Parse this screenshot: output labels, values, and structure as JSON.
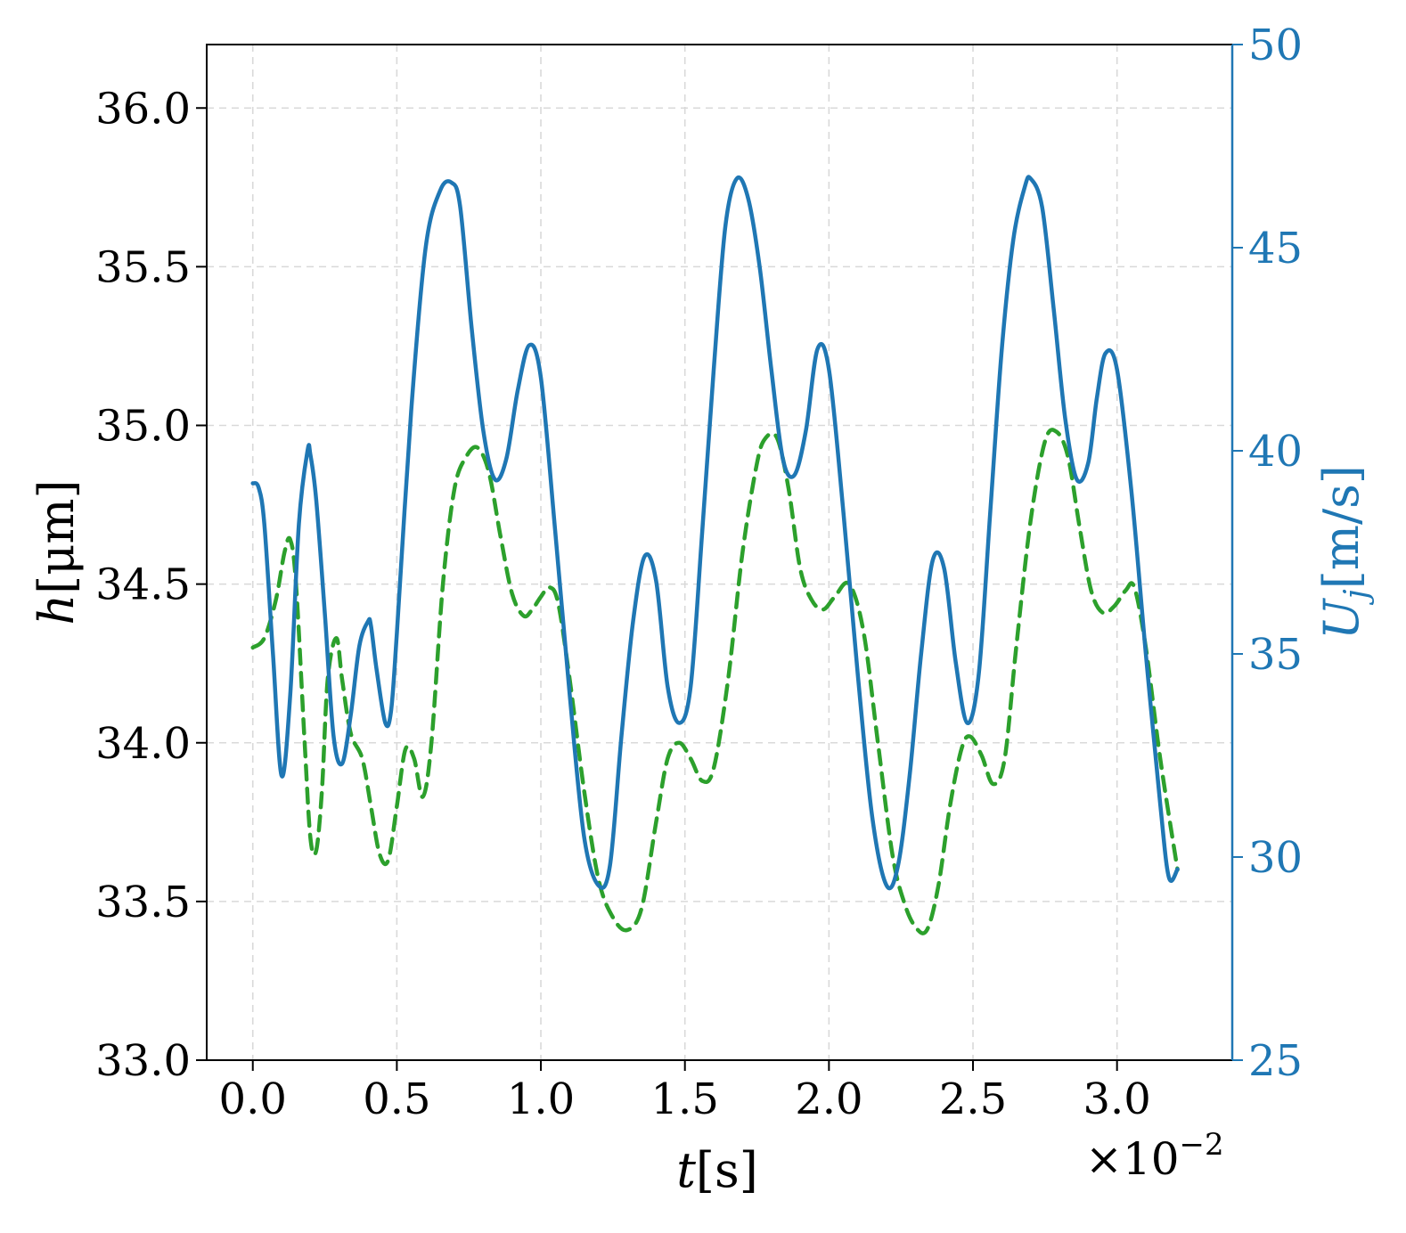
{
  "chart_data": {
    "type": "line",
    "grid": true,
    "x_axis": {
      "label_var": "t",
      "label_unit": "[s]",
      "range": [
        -0.0016,
        0.034
      ],
      "ticks": [
        0.0,
        0.005,
        0.01,
        0.015,
        0.02,
        0.025,
        0.03
      ],
      "tick_labels": [
        "0.0",
        "0.5",
        "1.0",
        "1.5",
        "2.0",
        "2.5",
        "3.0"
      ],
      "multiplier_base": "×10",
      "multiplier_exp": "−2"
    },
    "y_left": {
      "label_var": "h",
      "label_unit": "[μm]",
      "range": [
        33.0,
        36.2
      ],
      "ticks": [
        33.0,
        33.5,
        34.0,
        34.5,
        35.0,
        35.5,
        36.0
      ],
      "tick_labels": [
        "33.0",
        "33.5",
        "34.0",
        "34.5",
        "35.0",
        "35.5",
        "36.0"
      ]
    },
    "y_right": {
      "label_var": "U",
      "label_sub": "j",
      "label_unit": "[m/s]",
      "range": [
        25,
        50
      ],
      "ticks": [
        25,
        30,
        35,
        40,
        45,
        50
      ],
      "tick_labels": [
        "25",
        "30",
        "35",
        "40",
        "45",
        "50"
      ],
      "color": "#1f77b4"
    },
    "series": [
      {
        "axis": "right",
        "color": "#1f77b4",
        "style": "solid",
        "x": [
          0.0,
          0.0002,
          0.0004,
          0.0007,
          0.001,
          0.0013,
          0.0016,
          0.0019,
          0.002,
          0.0022,
          0.0025,
          0.0028,
          0.0031,
          0.0034,
          0.0037,
          0.004,
          0.0041,
          0.0043,
          0.0046,
          0.0048,
          0.005,
          0.0055,
          0.006,
          0.0065,
          0.0069,
          0.0072,
          0.0076,
          0.008,
          0.0084,
          0.0088,
          0.0092,
          0.0096,
          0.01,
          0.0105,
          0.011,
          0.0115,
          0.012,
          0.0124,
          0.0128,
          0.0132,
          0.0136,
          0.014,
          0.0144,
          0.0148,
          0.0152,
          0.0156,
          0.016,
          0.0164,
          0.0168,
          0.0172,
          0.0176,
          0.018,
          0.0184,
          0.0188,
          0.0192,
          0.0196,
          0.02,
          0.0205,
          0.021,
          0.0215,
          0.022,
          0.0224,
          0.0228,
          0.0232,
          0.0236,
          0.024,
          0.0244,
          0.0248,
          0.0252,
          0.0256,
          0.026,
          0.0264,
          0.0268,
          0.027,
          0.0274,
          0.0278,
          0.0282,
          0.0286,
          0.029,
          0.0293,
          0.0296,
          0.03,
          0.0305,
          0.031,
          0.0315,
          0.0318,
          0.0321
        ],
        "y": [
          39.2,
          39.1,
          38.2,
          35.0,
          32.0,
          34.0,
          38.2,
          40.0,
          39.9,
          38.8,
          36.0,
          33.0,
          32.3,
          33.5,
          35.2,
          35.8,
          35.7,
          34.6,
          33.3,
          33.6,
          35.5,
          41.0,
          45.0,
          46.4,
          46.6,
          46.0,
          43.0,
          40.5,
          39.3,
          39.8,
          41.5,
          42.6,
          41.8,
          38.0,
          34.0,
          30.5,
          29.3,
          29.8,
          33.0,
          35.8,
          37.4,
          36.8,
          34.2,
          33.3,
          34.2,
          38.0,
          42.0,
          45.5,
          46.7,
          46.2,
          44.5,
          42.0,
          39.8,
          39.4,
          40.5,
          42.5,
          42.0,
          38.5,
          34.5,
          31.0,
          29.3,
          29.8,
          32.0,
          35.0,
          37.3,
          37.1,
          34.8,
          33.3,
          34.5,
          38.5,
          42.5,
          45.2,
          46.5,
          46.7,
          46.0,
          43.5,
          40.8,
          39.3,
          39.7,
          41.3,
          42.4,
          42.0,
          39.0,
          35.0,
          31.3,
          29.5,
          29.7
        ]
      },
      {
        "axis": "left",
        "color": "#2ca02c",
        "style": "dashed",
        "x": [
          0.0,
          0.0004,
          0.0008,
          0.0011,
          0.0013,
          0.0015,
          0.0018,
          0.002,
          0.0022,
          0.0024,
          0.0026,
          0.0029,
          0.0031,
          0.0034,
          0.0038,
          0.0041,
          0.0044,
          0.0047,
          0.005,
          0.0053,
          0.0056,
          0.0059,
          0.0062,
          0.0066,
          0.007,
          0.0074,
          0.0078,
          0.0082,
          0.0086,
          0.009,
          0.0094,
          0.0097,
          0.01,
          0.0103,
          0.0106,
          0.011,
          0.0115,
          0.012,
          0.0125,
          0.013,
          0.0135,
          0.014,
          0.0144,
          0.0148,
          0.0152,
          0.0156,
          0.016,
          0.0165,
          0.017,
          0.0175,
          0.0178,
          0.0182,
          0.0186,
          0.019,
          0.0194,
          0.0198,
          0.0202,
          0.0207,
          0.0212,
          0.0217,
          0.0222,
          0.0226,
          0.023,
          0.0234,
          0.0238,
          0.0242,
          0.0246,
          0.0249,
          0.0253,
          0.0257,
          0.0261,
          0.0265,
          0.027,
          0.0275,
          0.0279,
          0.0283,
          0.0287,
          0.0291,
          0.0295,
          0.0299,
          0.0303,
          0.0306,
          0.031,
          0.0315,
          0.0321
        ],
        "y": [
          34.3,
          34.33,
          34.45,
          34.6,
          34.64,
          34.5,
          34.0,
          33.7,
          33.66,
          33.85,
          34.2,
          34.33,
          34.2,
          34.03,
          33.95,
          33.8,
          33.65,
          33.63,
          33.8,
          33.98,
          33.95,
          33.83,
          34.0,
          34.5,
          34.8,
          34.9,
          34.93,
          34.85,
          34.65,
          34.47,
          34.4,
          34.42,
          34.46,
          34.49,
          34.44,
          34.2,
          33.85,
          33.57,
          33.45,
          33.41,
          33.48,
          33.75,
          33.95,
          34.0,
          33.95,
          33.88,
          33.92,
          34.2,
          34.6,
          34.88,
          34.96,
          34.96,
          34.8,
          34.55,
          34.45,
          34.42,
          34.46,
          34.5,
          34.35,
          34.0,
          33.65,
          33.5,
          33.42,
          33.41,
          33.55,
          33.8,
          33.98,
          34.02,
          33.96,
          33.87,
          33.95,
          34.3,
          34.7,
          34.95,
          34.98,
          34.9,
          34.68,
          34.48,
          34.41,
          34.43,
          34.48,
          34.49,
          34.3,
          33.95,
          33.6
        ]
      }
    ]
  }
}
